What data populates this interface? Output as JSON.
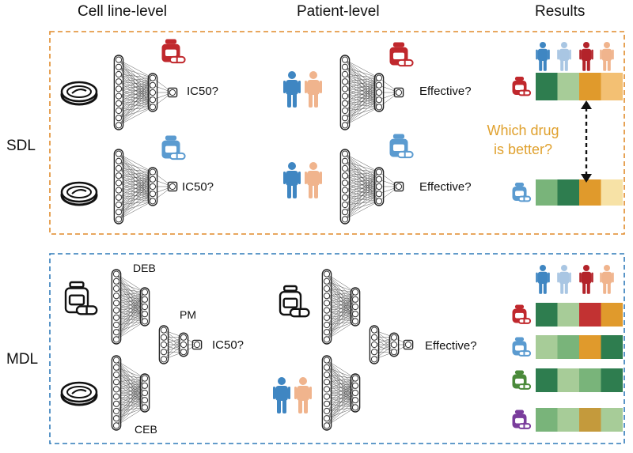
{
  "headers": {
    "cell_line": "Cell line-level",
    "patient": "Patient-level",
    "results": "Results"
  },
  "rows": {
    "sdl": "SDL",
    "mdl": "MDL"
  },
  "labels": {
    "ic50": "IC50?",
    "effective": "Effective?",
    "deb": "DEB",
    "pm": "PM",
    "ceb": "CEB"
  },
  "question": {
    "line1": "Which drug",
    "line2": "is better?"
  },
  "colors": {
    "sdl_border": "#e08a2a",
    "mdl_border": "#2f7ab9",
    "drug_red": "#c0282d",
    "drug_blue": "#5b9bd0",
    "drug_green": "#4a8a3a",
    "drug_purple": "#7a3d9c",
    "person_blue": "#3f86c2",
    "person_lightblue": "#a9c6e3",
    "person_red": "#b3232a",
    "person_peach": "#f0b48d"
  },
  "results": {
    "persons": [
      "person_blue",
      "person_lightblue",
      "person_red",
      "person_peach"
    ],
    "sdl_heatmap": [
      {
        "drug": "drug_red",
        "cells": [
          "#2e7d4f",
          "#a7cc98",
          "#e09a2c",
          "#f3c073"
        ]
      },
      {
        "drug": "drug_blue",
        "cells": [
          "#79b47a",
          "#2e7d4f",
          "#e09a2c",
          "#f7e2a6"
        ]
      }
    ],
    "mdl_heatmap": [
      {
        "drug": "drug_red",
        "cells": [
          "#2e7d4f",
          "#a7cc98",
          "#c23232",
          "#e09a2c"
        ]
      },
      {
        "drug": "drug_blue",
        "cells": [
          "#a7cc98",
          "#79b47a",
          "#e09a2c",
          "#2e7d4f"
        ]
      },
      {
        "drug": "drug_green",
        "cells": [
          "#2e7d4f",
          "#a7cc98",
          "#79b47a",
          "#2e7d4f"
        ]
      },
      {
        "drug": "drug_purple",
        "cells": [
          "#79b47a",
          "#a7cc98",
          "#c49a3c",
          "#a7cc98"
        ]
      }
    ]
  }
}
